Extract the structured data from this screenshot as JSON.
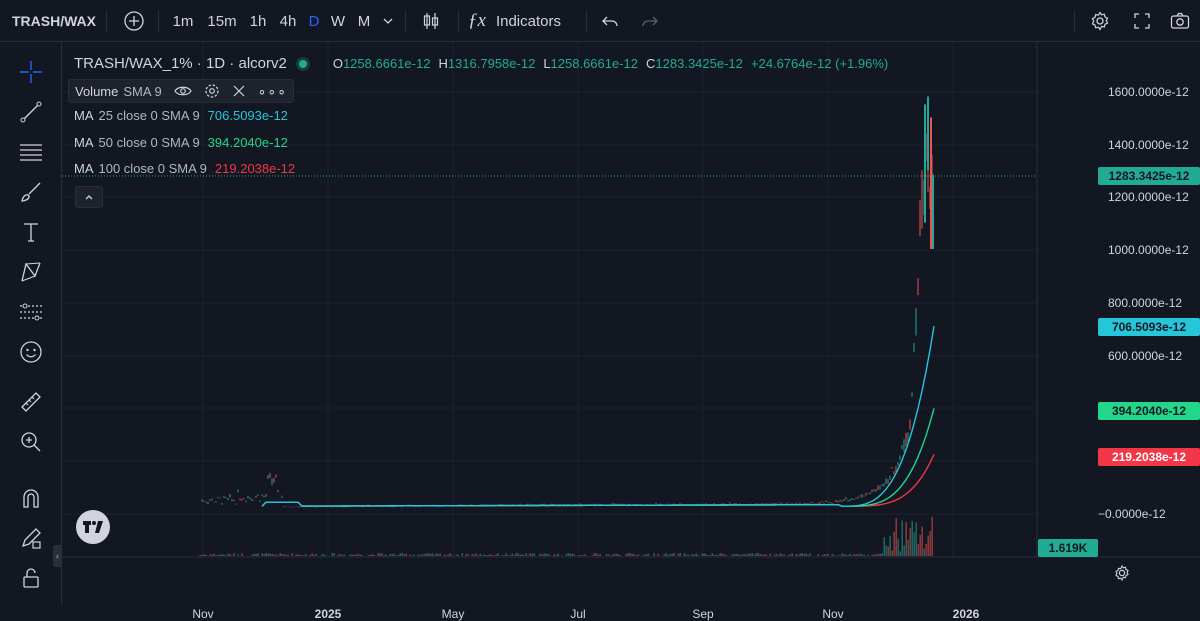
{
  "header": {
    "symbol": "TRASH/WAX",
    "intervals": [
      "1m",
      "15m",
      "1h",
      "4h",
      "D",
      "W",
      "M"
    ],
    "active_interval": "D",
    "indicators_label": "Indicators"
  },
  "legend": {
    "title": "TRASH/WAX_1% · 1D · alcorv2",
    "ohlc": {
      "o_label": "O",
      "o": "1258.6661e-12",
      "h_label": "H",
      "h": "1316.7958e-12",
      "l_label": "L",
      "l": "1258.6661e-12",
      "c_label": "C",
      "c": "1283.3425e-12",
      "change": "+24.6764e-12 (+1.96%)"
    },
    "volume": {
      "name": "Volume",
      "params": "SMA 9"
    },
    "ma25": {
      "name": "MA",
      "params": "25 close 0 SMA 9",
      "value": "706.5093e-12"
    },
    "ma50": {
      "name": "MA",
      "params": "50 close 0 SMA 9",
      "value": "394.2040e-12"
    },
    "ma100": {
      "name": "MA",
      "params": "100 close 0 SMA 9",
      "value": "219.2038e-12"
    }
  },
  "price_axis": {
    "ticks": [
      "1600.0000e-12",
      "1400.0000e-12",
      "1200.0000e-12",
      "1000.0000e-12",
      "800.0000e-12",
      "600.0000e-12",
      "−0.0000e-12"
    ],
    "last_price": "1283.3425e-12",
    "ma25_label": "706.5093e-12",
    "ma50_label": "394.2040e-12",
    "ma100_label": "219.2038e-12",
    "volume_label": "1.619K"
  },
  "time_axis": {
    "ticks": [
      "Nov",
      "2025",
      "May",
      "Jul",
      "Sep",
      "Nov",
      "2026"
    ]
  },
  "colors": {
    "bg": "#131722",
    "up": "#26a69a",
    "down": "#ef5350",
    "ma25": "#26c6da",
    "ma50": "#22d68a",
    "ma100": "#f23645",
    "last_price": "#22ab94"
  }
}
